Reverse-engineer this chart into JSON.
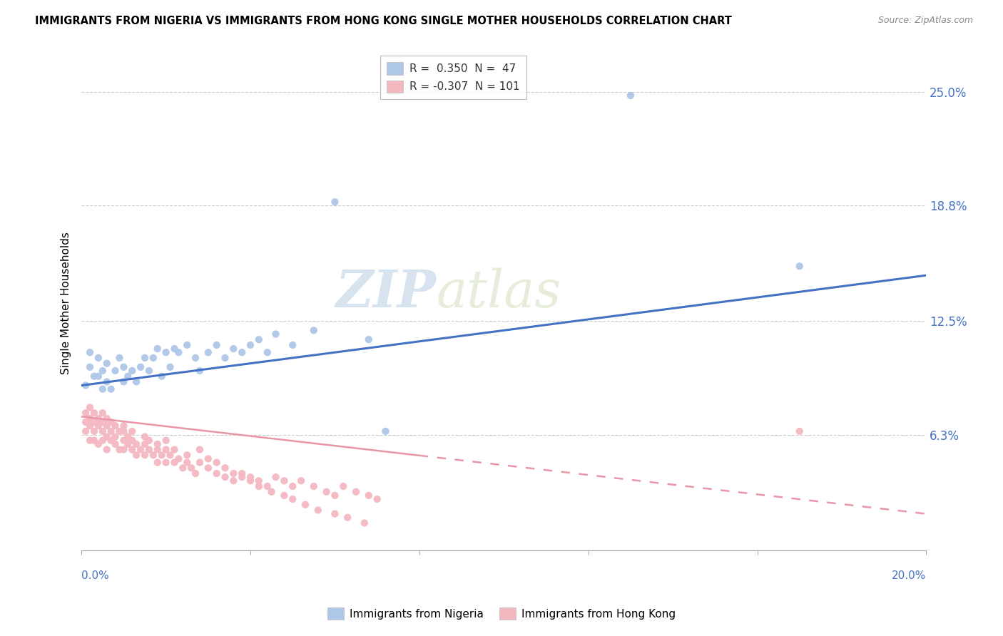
{
  "title": "IMMIGRANTS FROM NIGERIA VS IMMIGRANTS FROM HONG KONG SINGLE MOTHER HOUSEHOLDS CORRELATION CHART",
  "source": "Source: ZipAtlas.com",
  "ylabel": "Single Mother Households",
  "ytick_labels": [
    "6.3%",
    "12.5%",
    "18.8%",
    "25.0%"
  ],
  "ytick_values": [
    0.063,
    0.125,
    0.188,
    0.25
  ],
  "xlim": [
    0.0,
    0.2
  ],
  "ylim": [
    0.0,
    0.27
  ],
  "legend1_label": "R =  0.350  N =  47",
  "legend2_label": "R = -0.307  N = 101",
  "scatter1_color": "#aec6e8",
  "scatter2_color": "#f4b8c1",
  "line1_color": "#4472c4",
  "line2_color": "#e896a8",
  "nigeria_x": [
    0.001,
    0.002,
    0.002,
    0.003,
    0.004,
    0.004,
    0.005,
    0.005,
    0.006,
    0.006,
    0.007,
    0.008,
    0.009,
    0.01,
    0.01,
    0.011,
    0.012,
    0.013,
    0.014,
    0.015,
    0.016,
    0.017,
    0.018,
    0.019,
    0.02,
    0.021,
    0.022,
    0.023,
    0.025,
    0.027,
    0.028,
    0.03,
    0.032,
    0.034,
    0.036,
    0.038,
    0.04,
    0.042,
    0.044,
    0.046,
    0.05,
    0.055,
    0.06,
    0.068,
    0.072,
    0.13,
    0.17
  ],
  "nigeria_y": [
    0.09,
    0.1,
    0.108,
    0.095,
    0.105,
    0.095,
    0.088,
    0.098,
    0.092,
    0.102,
    0.088,
    0.098,
    0.105,
    0.092,
    0.1,
    0.095,
    0.098,
    0.092,
    0.1,
    0.105,
    0.098,
    0.105,
    0.11,
    0.095,
    0.108,
    0.1,
    0.11,
    0.108,
    0.112,
    0.105,
    0.098,
    0.108,
    0.112,
    0.105,
    0.11,
    0.108,
    0.112,
    0.115,
    0.108,
    0.118,
    0.112,
    0.12,
    0.19,
    0.115,
    0.065,
    0.248,
    0.155
  ],
  "hongkong_x": [
    0.001,
    0.001,
    0.001,
    0.002,
    0.002,
    0.002,
    0.002,
    0.003,
    0.003,
    0.003,
    0.003,
    0.004,
    0.004,
    0.004,
    0.005,
    0.005,
    0.005,
    0.005,
    0.006,
    0.006,
    0.006,
    0.006,
    0.007,
    0.007,
    0.007,
    0.008,
    0.008,
    0.008,
    0.009,
    0.009,
    0.01,
    0.01,
    0.01,
    0.011,
    0.011,
    0.012,
    0.012,
    0.013,
    0.013,
    0.014,
    0.015,
    0.015,
    0.016,
    0.016,
    0.017,
    0.018,
    0.018,
    0.019,
    0.02,
    0.02,
    0.021,
    0.022,
    0.023,
    0.024,
    0.025,
    0.026,
    0.027,
    0.028,
    0.03,
    0.032,
    0.034,
    0.036,
    0.038,
    0.04,
    0.042,
    0.044,
    0.046,
    0.048,
    0.05,
    0.052,
    0.055,
    0.058,
    0.06,
    0.062,
    0.065,
    0.068,
    0.07,
    0.01,
    0.012,
    0.015,
    0.018,
    0.02,
    0.022,
    0.025,
    0.028,
    0.03,
    0.032,
    0.034,
    0.036,
    0.038,
    0.04,
    0.042,
    0.045,
    0.048,
    0.05,
    0.053,
    0.056,
    0.06,
    0.063,
    0.067,
    0.17
  ],
  "hongkong_y": [
    0.07,
    0.075,
    0.065,
    0.068,
    0.072,
    0.06,
    0.078,
    0.065,
    0.07,
    0.075,
    0.06,
    0.068,
    0.072,
    0.058,
    0.065,
    0.07,
    0.06,
    0.075,
    0.062,
    0.068,
    0.055,
    0.072,
    0.06,
    0.065,
    0.07,
    0.058,
    0.062,
    0.068,
    0.055,
    0.065,
    0.06,
    0.065,
    0.055,
    0.058,
    0.062,
    0.055,
    0.06,
    0.052,
    0.058,
    0.055,
    0.058,
    0.052,
    0.055,
    0.06,
    0.052,
    0.055,
    0.048,
    0.052,
    0.055,
    0.048,
    0.052,
    0.048,
    0.05,
    0.045,
    0.048,
    0.045,
    0.042,
    0.048,
    0.045,
    0.042,
    0.04,
    0.038,
    0.042,
    0.04,
    0.038,
    0.035,
    0.04,
    0.038,
    0.035,
    0.038,
    0.035,
    0.032,
    0.03,
    0.035,
    0.032,
    0.03,
    0.028,
    0.068,
    0.065,
    0.062,
    0.058,
    0.06,
    0.055,
    0.052,
    0.055,
    0.05,
    0.048,
    0.045,
    0.042,
    0.04,
    0.038,
    0.035,
    0.032,
    0.03,
    0.028,
    0.025,
    0.022,
    0.02,
    0.018,
    0.015,
    0.065
  ],
  "line1_x_start": 0.0,
  "line1_x_end": 0.2,
  "line1_y_start": 0.09,
  "line1_y_end": 0.15,
  "line2_x_solid_start": 0.0,
  "line2_x_solid_end": 0.08,
  "line2_x_dash_start": 0.08,
  "line2_x_dash_end": 0.2,
  "line2_y_start": 0.073,
  "line2_y_end": 0.02
}
